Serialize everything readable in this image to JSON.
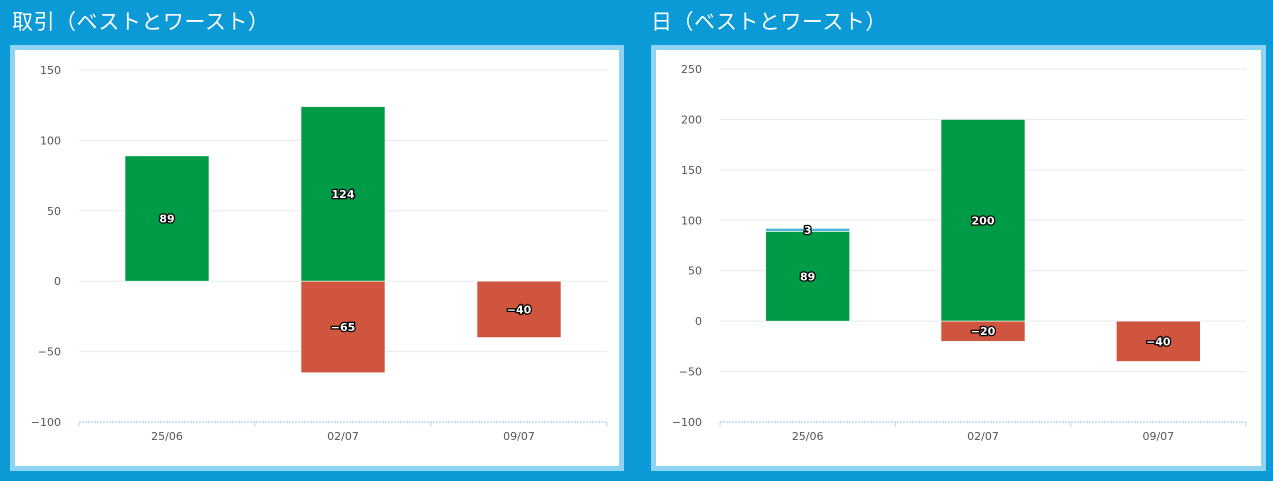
{
  "panels": [
    {
      "title": "取引（ベストとワースト）",
      "chart_data": {
        "type": "bar",
        "stacked": true,
        "categories": [
          "25/06",
          "02/07",
          "09/07"
        ],
        "series": [
          {
            "values": [
              89,
              124,
              0
            ],
            "color": "#009b46",
            "labels": [
              "89",
              "124",
              ""
            ]
          },
          {
            "values": [
              0,
              -65,
              -40
            ],
            "color": "#cf553e",
            "labels": [
              "",
              "−65",
              "−40"
            ]
          }
        ],
        "ylim": [
          -100,
          150
        ],
        "yticks": [
          150,
          100,
          50,
          0,
          -50,
          -100
        ],
        "ytick_labels": [
          "150",
          "100",
          "50",
          "0",
          "−50",
          "−100"
        ],
        "grid": true
      }
    },
    {
      "title": "日（ベストとワースト）",
      "chart_data": {
        "type": "bar",
        "stacked": true,
        "categories": [
          "25/06",
          "02/07",
          "09/07"
        ],
        "series": [
          {
            "values": [
              89,
              200,
              0
            ],
            "color": "#009b46",
            "labels": [
              "89",
              "200",
              ""
            ]
          },
          {
            "values": [
              3,
              0,
              0
            ],
            "color": "#4db3d6",
            "labels": [
              "3",
              "",
              ""
            ]
          },
          {
            "values": [
              0,
              -20,
              -40
            ],
            "color": "#cf553e",
            "labels": [
              "",
              "−20",
              "−40"
            ]
          }
        ],
        "ylim": [
          -100,
          250
        ],
        "yticks": [
          250,
          200,
          150,
          100,
          50,
          0,
          -50,
          -100
        ],
        "ytick_labels": [
          "250",
          "200",
          "150",
          "100",
          "50",
          "0",
          "−50",
          "−100"
        ],
        "grid": true
      }
    }
  ]
}
